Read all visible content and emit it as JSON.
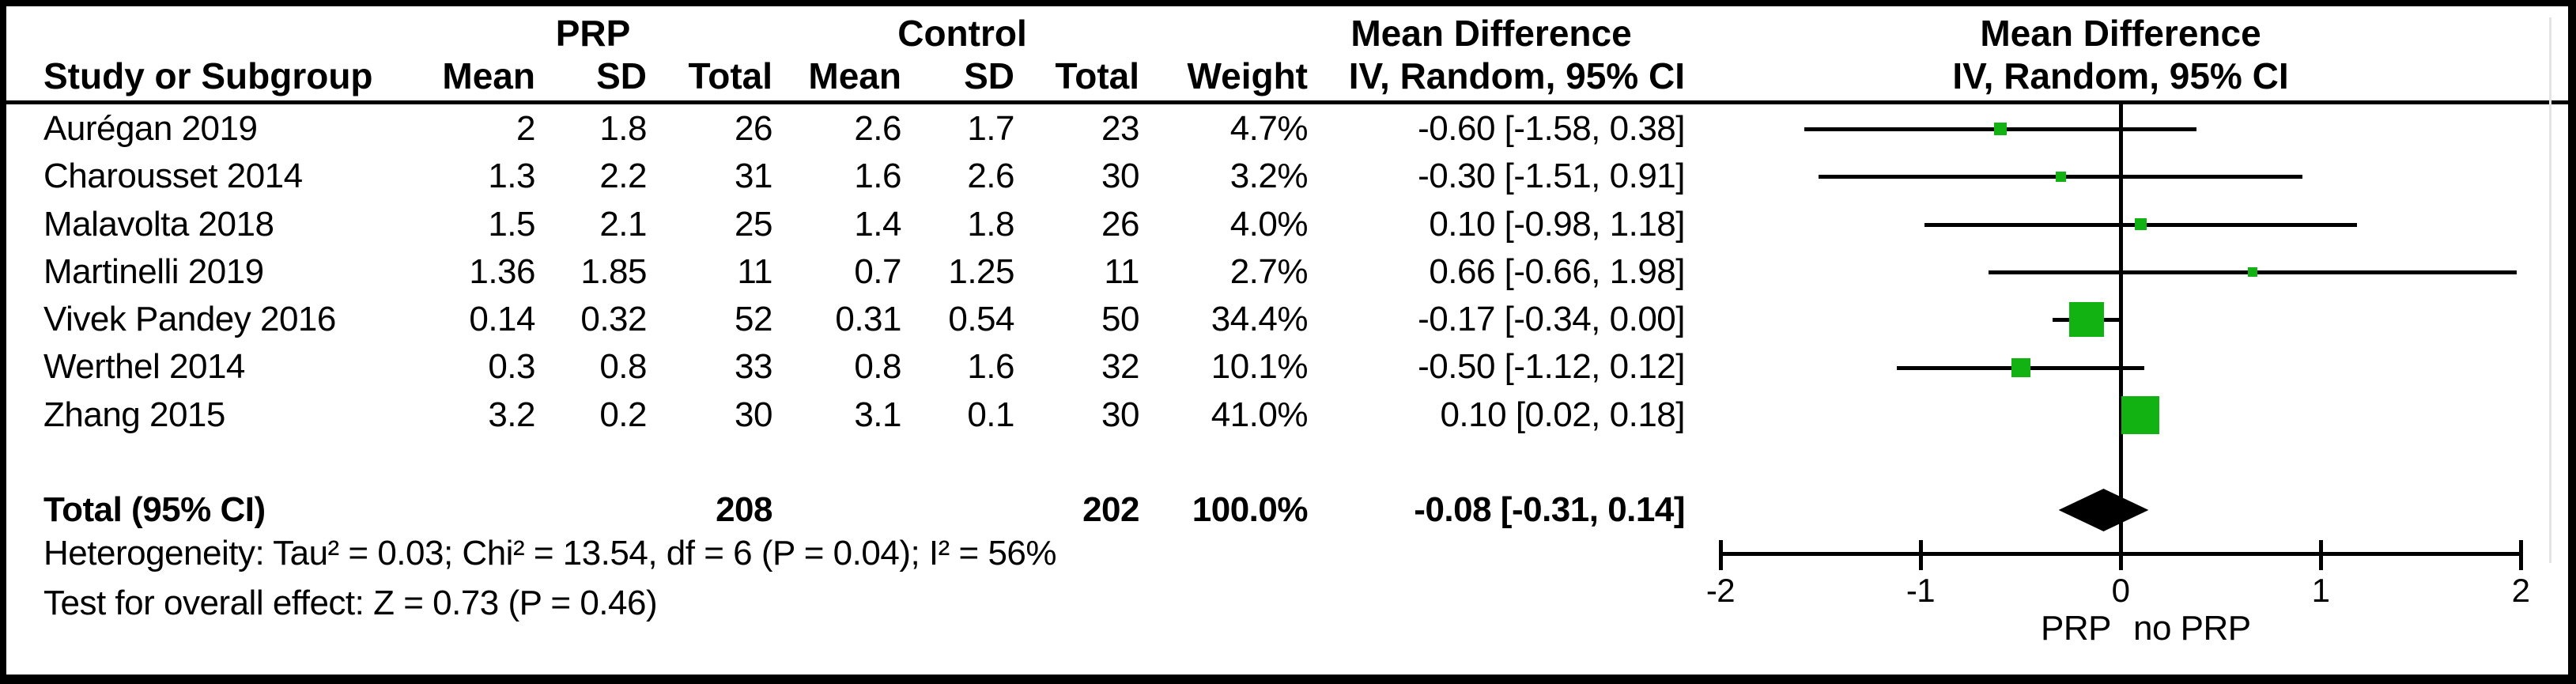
{
  "table": {
    "group1_header": "PRP",
    "group2_header": "Control",
    "md_header": "Mean Difference",
    "md_subheader": "IV, Random, 95% CI",
    "plot_header": "Mean Difference",
    "plot_subheader": "IV, Random, 95% CI",
    "columns": {
      "study": "Study or Subgroup",
      "mean": "Mean",
      "sd": "SD",
      "total": "Total",
      "mean2": "Mean",
      "sd2": "SD",
      "total2": "Total",
      "weight": "Weight"
    },
    "rows": [
      {
        "study": "Aurégan 2019",
        "prp_mean": "2",
        "prp_sd": "1.8",
        "prp_total": "26",
        "ctrl_mean": "2.6",
        "ctrl_sd": "1.7",
        "ctrl_total": "23",
        "weight": "4.7%",
        "ci": "-0.60 [-1.58, 0.38]"
      },
      {
        "study": "Charousset 2014",
        "prp_mean": "1.3",
        "prp_sd": "2.2",
        "prp_total": "31",
        "ctrl_mean": "1.6",
        "ctrl_sd": "2.6",
        "ctrl_total": "30",
        "weight": "3.2%",
        "ci": "-0.30 [-1.51, 0.91]"
      },
      {
        "study": "Malavolta 2018",
        "prp_mean": "1.5",
        "prp_sd": "2.1",
        "prp_total": "25",
        "ctrl_mean": "1.4",
        "ctrl_sd": "1.8",
        "ctrl_total": "26",
        "weight": "4.0%",
        "ci": "0.10 [-0.98, 1.18]"
      },
      {
        "study": "Martinelli 2019",
        "prp_mean": "1.36",
        "prp_sd": "1.85",
        "prp_total": "11",
        "ctrl_mean": "0.7",
        "ctrl_sd": "1.25",
        "ctrl_total": "11",
        "weight": "2.7%",
        "ci": "0.66 [-0.66, 1.98]"
      },
      {
        "study": "Vivek Pandey 2016",
        "prp_mean": "0.14",
        "prp_sd": "0.32",
        "prp_total": "52",
        "ctrl_mean": "0.31",
        "ctrl_sd": "0.54",
        "ctrl_total": "50",
        "weight": "34.4%",
        "ci": "-0.17 [-0.34, 0.00]"
      },
      {
        "study": "Werthel 2014",
        "prp_mean": "0.3",
        "prp_sd": "0.8",
        "prp_total": "33",
        "ctrl_mean": "0.8",
        "ctrl_sd": "1.6",
        "ctrl_total": "32",
        "weight": "10.1%",
        "ci": "-0.50 [-1.12, 0.12]"
      },
      {
        "study": "Zhang 2015",
        "prp_mean": "3.2",
        "prp_sd": "0.2",
        "prp_total": "30",
        "ctrl_mean": "3.1",
        "ctrl_sd": "0.1",
        "ctrl_total": "30",
        "weight": "41.0%",
        "ci": "0.10 [0.02, 0.18]"
      }
    ],
    "total": {
      "label": "Total (95% CI)",
      "prp_total": "208",
      "ctrl_total": "202",
      "weight": "100.0%",
      "ci": "-0.08 [-0.31, 0.14]"
    },
    "heterogeneity": "Heterogeneity: Tau² = 0.03; Chi² = 13.54, df = 6 (P = 0.04); I² = 56%",
    "overall_effect": "Test for overall effect: Z = 0.73 (P = 0.46)"
  },
  "chart_data": {
    "type": "forest",
    "effect_measure": "Mean Difference, IV, Random, 95% CI",
    "xlim": [
      -2,
      2
    ],
    "ticks": [
      -2,
      -1,
      0,
      1,
      2
    ],
    "favours_left": "PRP",
    "favours_right": "no PRP",
    "marker_color": "#13b213",
    "line_color": "#000000",
    "studies": [
      {
        "name": "Aurégan 2019",
        "md": -0.6,
        "ci_low": -1.58,
        "ci_high": 0.38,
        "weight_pct": 4.7
      },
      {
        "name": "Charousset 2014",
        "md": -0.3,
        "ci_low": -1.51,
        "ci_high": 0.91,
        "weight_pct": 3.2
      },
      {
        "name": "Malavolta 2018",
        "md": 0.1,
        "ci_low": -0.98,
        "ci_high": 1.18,
        "weight_pct": 4.0
      },
      {
        "name": "Martinelli 2019",
        "md": 0.66,
        "ci_low": -0.66,
        "ci_high": 1.98,
        "weight_pct": 2.7
      },
      {
        "name": "Vivek Pandey 2016",
        "md": -0.17,
        "ci_low": -0.34,
        "ci_high": 0.0,
        "weight_pct": 34.4
      },
      {
        "name": "Werthel 2014",
        "md": -0.5,
        "ci_low": -1.12,
        "ci_high": 0.12,
        "weight_pct": 10.1
      },
      {
        "name": "Zhang 2015",
        "md": 0.1,
        "ci_low": 0.02,
        "ci_high": 0.18,
        "weight_pct": 41.0
      }
    ],
    "total": {
      "md": -0.08,
      "ci_low": -0.31,
      "ci_high": 0.14
    }
  }
}
